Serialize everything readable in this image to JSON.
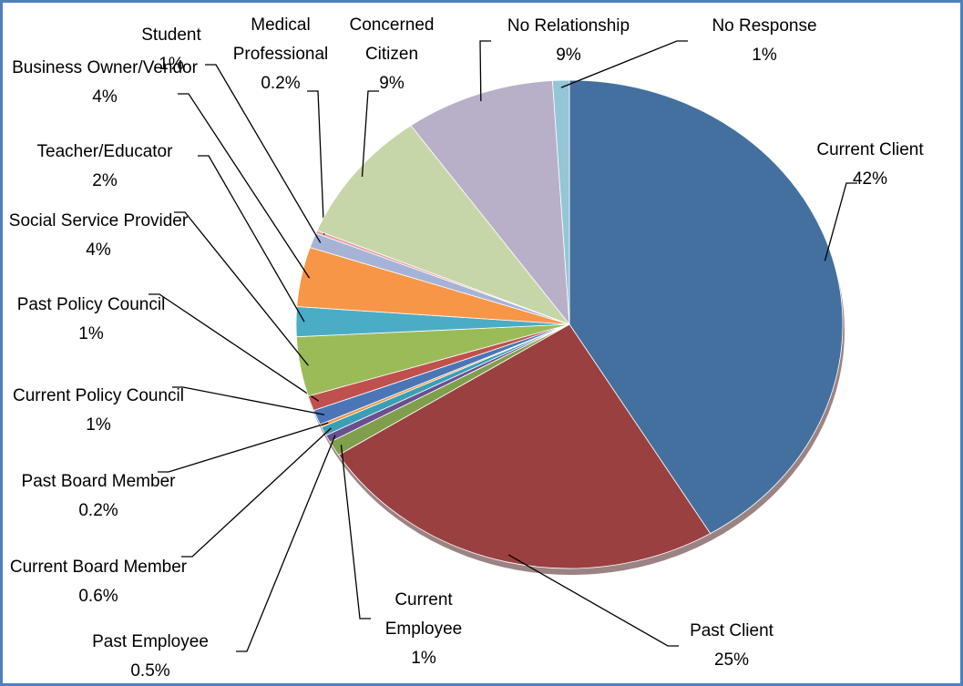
{
  "chart_data": {
    "type": "pie",
    "categories": [
      "Current Client",
      "Past Client",
      "Current Employee",
      "Past Employee",
      "Current Board Member",
      "Past Board Member",
      "Current Policy Council",
      "Past Policy Council",
      "Social Service Provider",
      "Teacher/Educator",
      "Business Owner/Vendor",
      "Student",
      "Medical Professional",
      "Concerned Citizen",
      "No Relationship",
      "No Response"
    ],
    "values": [
      42,
      25,
      1,
      0.5,
      0.6,
      0.2,
      1,
      1,
      4,
      2,
      4,
      1,
      0.2,
      9,
      9,
      1
    ],
    "value_labels": [
      "42%",
      "25%",
      "1%",
      "0.5%",
      "0.6%",
      "0.2%",
      "1%",
      "1%",
      "4%",
      "2%",
      "4%",
      "1%",
      "0.2%",
      "9%",
      "9%",
      "1%"
    ],
    "colors": [
      "#4470a0",
      "#9b4040",
      "#7f9f4c",
      "#6a4f90",
      "#3a9fb5",
      "#f0913b",
      "#4a76b8",
      "#c0504d",
      "#9bbb59",
      "#4bacc6",
      "#f79646",
      "#a5b3d6",
      "#e8a0a0",
      "#c6d6a8",
      "#b8afc9",
      "#93c6d6"
    ]
  }
}
